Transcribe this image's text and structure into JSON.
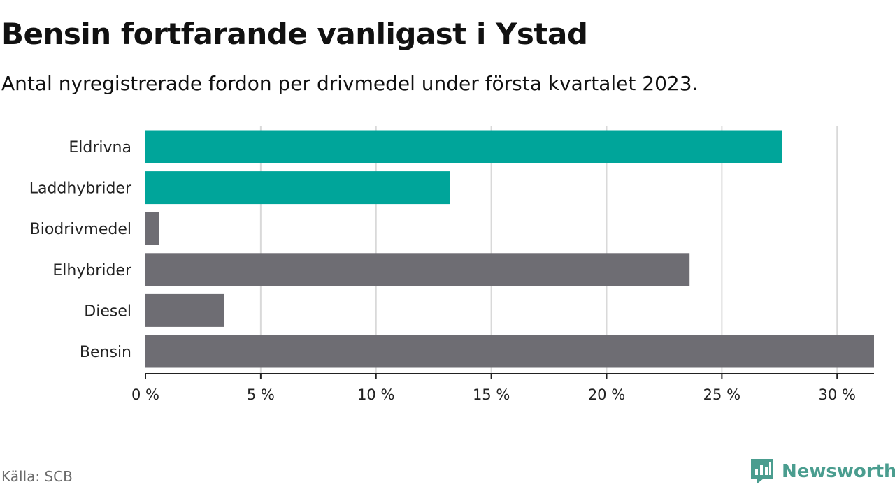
{
  "title": "Bensin fortfarande vanligast i Ystad",
  "subtitle": "Antal nyregistrerade fordon per drivmedel under första kvartalet 2023.",
  "source": "Källa: SCB",
  "brand": "Newsworthy",
  "colors": {
    "highlight": "#00a59a",
    "default": "#6e6d73",
    "grid": "#d9d9d9",
    "axis": "#222222",
    "brand": "#4a9d8f"
  },
  "chart_data": {
    "type": "bar",
    "orientation": "horizontal",
    "categories": [
      "Eldrivna",
      "Laddhybrider",
      "Biodrivmedel",
      "Elhybrider",
      "Diesel",
      "Bensin"
    ],
    "values": [
      27.6,
      13.2,
      0.6,
      23.6,
      3.4,
      31.6
    ],
    "highlighted": [
      true,
      true,
      false,
      false,
      false,
      false
    ],
    "xticks": [
      "0 %",
      "5 %",
      "10 %",
      "15 %",
      "20 %",
      "25 %",
      "30 %"
    ],
    "xtick_values": [
      0,
      5,
      10,
      15,
      20,
      25,
      30
    ],
    "xlim": [
      0,
      31.6
    ],
    "grid": true
  }
}
